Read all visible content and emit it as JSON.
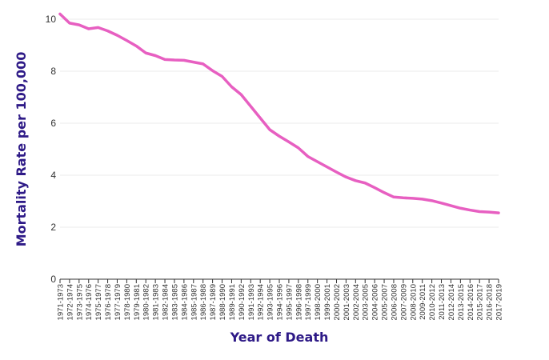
{
  "chart_data": {
    "type": "line",
    "xlabel": "Year of Death",
    "ylabel": "Mortality Rate per 100,000",
    "ylim": [
      0,
      10
    ],
    "yticks": [
      "0",
      "2",
      "4",
      "6",
      "8",
      "10"
    ],
    "grid": true,
    "categories": [
      "1971-1973",
      "1972-1974",
      "1973-1975",
      "1974-1976",
      "1975-1977",
      "1976-1978",
      "1977-1979",
      "1978-1980",
      "1979-1981",
      "1980-1982",
      "1981-1983",
      "1982-1984",
      "1983-1985",
      "1984-1986",
      "1985-1987",
      "1986-1988",
      "1987-1989",
      "1988-1990",
      "1989-1991",
      "1990-1992",
      "1991-1993",
      "1992-1994",
      "1993-1995",
      "1994-1996",
      "1995-1997",
      "1996-1998",
      "1997-1999",
      "1998-2000",
      "1999-2001",
      "2000-2002",
      "2001-2003",
      "2002-2004",
      "2003-2005",
      "2004-2006",
      "2005-2007",
      "2006-2008",
      "2007-2009",
      "2008-2010",
      "2009-2011",
      "2010-2012",
      "2011-2013",
      "2012-2014",
      "2013-2015",
      "2014-2016",
      "2015-2017",
      "2016-2018",
      "2017-2019"
    ],
    "series": [
      {
        "values": [
          10.2,
          9.85,
          9.78,
          9.63,
          9.68,
          9.55,
          9.38,
          9.18,
          8.97,
          8.7,
          8.6,
          8.45,
          8.43,
          8.42,
          8.35,
          8.28,
          8.02,
          7.8,
          7.4,
          7.1,
          6.65,
          6.2,
          5.75,
          5.5,
          5.28,
          5.05,
          4.72,
          4.52,
          4.32,
          4.12,
          3.93,
          3.79,
          3.7,
          3.52,
          3.33,
          3.16,
          3.13,
          3.11,
          3.08,
          3.02,
          2.93,
          2.83,
          2.73,
          2.66,
          2.6,
          2.58,
          2.55
        ],
        "color": "#e75fc1"
      }
    ],
    "colors": {
      "axis_title": "#2e1a87",
      "tick_label": "#333333",
      "grid": "#ebebeb",
      "axis_line": "#333333"
    }
  }
}
